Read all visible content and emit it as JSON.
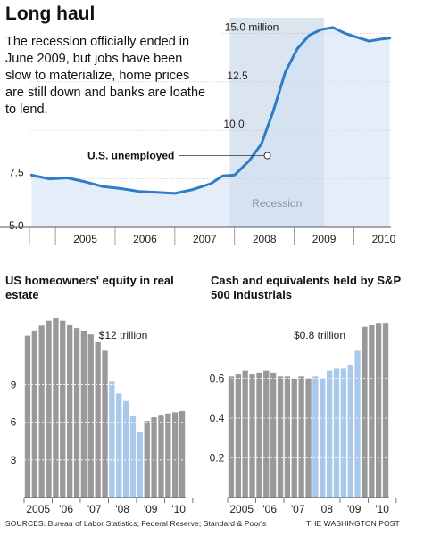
{
  "headline": {
    "title": "Long haul",
    "intro": "The recession officially ended in June 2009, but jobs have been slow to materialize, home prices are still down and banks are loathe to lend."
  },
  "colors": {
    "line": "#2e7cc7",
    "area": "#cfe0f3",
    "recession_band": "#dbe5f0",
    "bar_gray": "#999999",
    "bar_blue": "#a9c9ec"
  },
  "chart_data": [
    {
      "type": "area",
      "title": "Long haul",
      "series": [
        {
          "name": "U.S. unemployed",
          "x": [
            2004.6,
            2004.9,
            2005.2,
            2005.5,
            2005.8,
            2006.1,
            2006.4,
            2006.7,
            2007.0,
            2007.3,
            2007.6,
            2007.8,
            2008.0,
            2008.25,
            2008.45,
            2008.65,
            2008.85,
            2009.05,
            2009.25,
            2009.45,
            2009.65,
            2009.85,
            2010.05,
            2010.25,
            2010.45,
            2010.6
          ],
          "values": [
            7.7,
            7.5,
            7.55,
            7.35,
            7.1,
            7.0,
            6.85,
            6.8,
            6.75,
            6.95,
            7.25,
            7.65,
            7.7,
            8.45,
            9.3,
            11.0,
            13.0,
            14.2,
            14.9,
            15.2,
            15.3,
            15.0,
            14.8,
            14.6,
            14.7,
            14.75
          ]
        }
      ],
      "ylim": [
        5.0,
        15.8
      ],
      "xlim": [
        2004.55,
        2010.62
      ],
      "y_ticks": [
        "5.0",
        "7.5",
        "10.0",
        "12.5",
        "15.0 million"
      ],
      "x_ticks": [
        "2005",
        "2006",
        "2007",
        "2008",
        "2009",
        "2010"
      ],
      "recession": {
        "label": "Recession",
        "start": 2007.92,
        "end": 2009.5
      },
      "annotation": {
        "label": "U.S. unemployed",
        "x": 2008.55,
        "y": 8.7
      },
      "grid": true
    },
    {
      "type": "bar",
      "title": "US homeowners' equity in real estate",
      "unit_label": "$12 trillion",
      "categories": [
        "2005 Q1",
        "2005 Q2",
        "2005 Q3",
        "2005 Q4",
        "2006 Q1",
        "2006 Q2",
        "2006 Q3",
        "2006 Q4",
        "2007 Q1",
        "2007 Q2",
        "2007 Q3",
        "2007 Q4",
        "2008 Q1",
        "2008 Q2",
        "2008 Q3",
        "2008 Q4",
        "2009 Q1",
        "2009 Q2",
        "2009 Q3",
        "2009 Q4",
        "2010 Q1",
        "2010 Q2",
        "2010 Q3"
      ],
      "values": [
        12.9,
        13.3,
        13.7,
        14.1,
        14.3,
        14.1,
        13.8,
        13.5,
        13.3,
        13.0,
        12.4,
        11.7,
        9.3,
        8.3,
        7.7,
        6.5,
        5.2,
        6.1,
        6.4,
        6.6,
        6.7,
        6.8,
        6.9
      ],
      "highlight": [
        false,
        false,
        false,
        false,
        false,
        false,
        false,
        false,
        false,
        false,
        false,
        false,
        true,
        true,
        true,
        true,
        true,
        false,
        false,
        false,
        false,
        false,
        false
      ],
      "ylim": [
        0,
        15.5
      ],
      "y_ticks": [
        "3",
        "6",
        "9"
      ],
      "y_tick_values": [
        3,
        6,
        9
      ],
      "x_ticks": [
        "2005",
        "'06",
        "'07",
        "'08",
        "'09",
        "'10"
      ]
    },
    {
      "type": "bar",
      "title": "Cash and equivalents held by S&P 500 Industrials",
      "unit_label": "$0.8 trillion",
      "categories": [
        "2005 Q1",
        "2005 Q2",
        "2005 Q3",
        "2005 Q4",
        "2006 Q1",
        "2006 Q2",
        "2006 Q3",
        "2006 Q4",
        "2007 Q1",
        "2007 Q2",
        "2007 Q3",
        "2007 Q4",
        "2008 Q1",
        "2008 Q2",
        "2008 Q3",
        "2008 Q4",
        "2009 Q1",
        "2009 Q2",
        "2009 Q3",
        "2009 Q4",
        "2010 Q1",
        "2010 Q2",
        "2010 Q3"
      ],
      "values": [
        0.61,
        0.62,
        0.64,
        0.62,
        0.63,
        0.64,
        0.63,
        0.61,
        0.61,
        0.6,
        0.61,
        0.6,
        0.61,
        0.6,
        0.64,
        0.65,
        0.65,
        0.67,
        0.74,
        0.86,
        0.87,
        0.88,
        0.88
      ],
      "highlight": [
        false,
        false,
        false,
        false,
        false,
        false,
        false,
        false,
        false,
        false,
        false,
        false,
        true,
        true,
        true,
        true,
        true,
        true,
        true,
        false,
        false,
        false,
        false
      ],
      "ylim": [
        0,
        0.98
      ],
      "y_ticks": [
        "0.2",
        "0.4",
        "0.6"
      ],
      "y_tick_values": [
        0.2,
        0.4,
        0.6
      ],
      "x_ticks": [
        "2005",
        "'06",
        "'07",
        "'08",
        "'09",
        "'10"
      ]
    }
  ],
  "footer": {
    "sources": "SOURCES: Bureau of Labor Statistics; Federal Reserve; Standard & Poor's",
    "credit": "THE WASHINGTON POST"
  }
}
